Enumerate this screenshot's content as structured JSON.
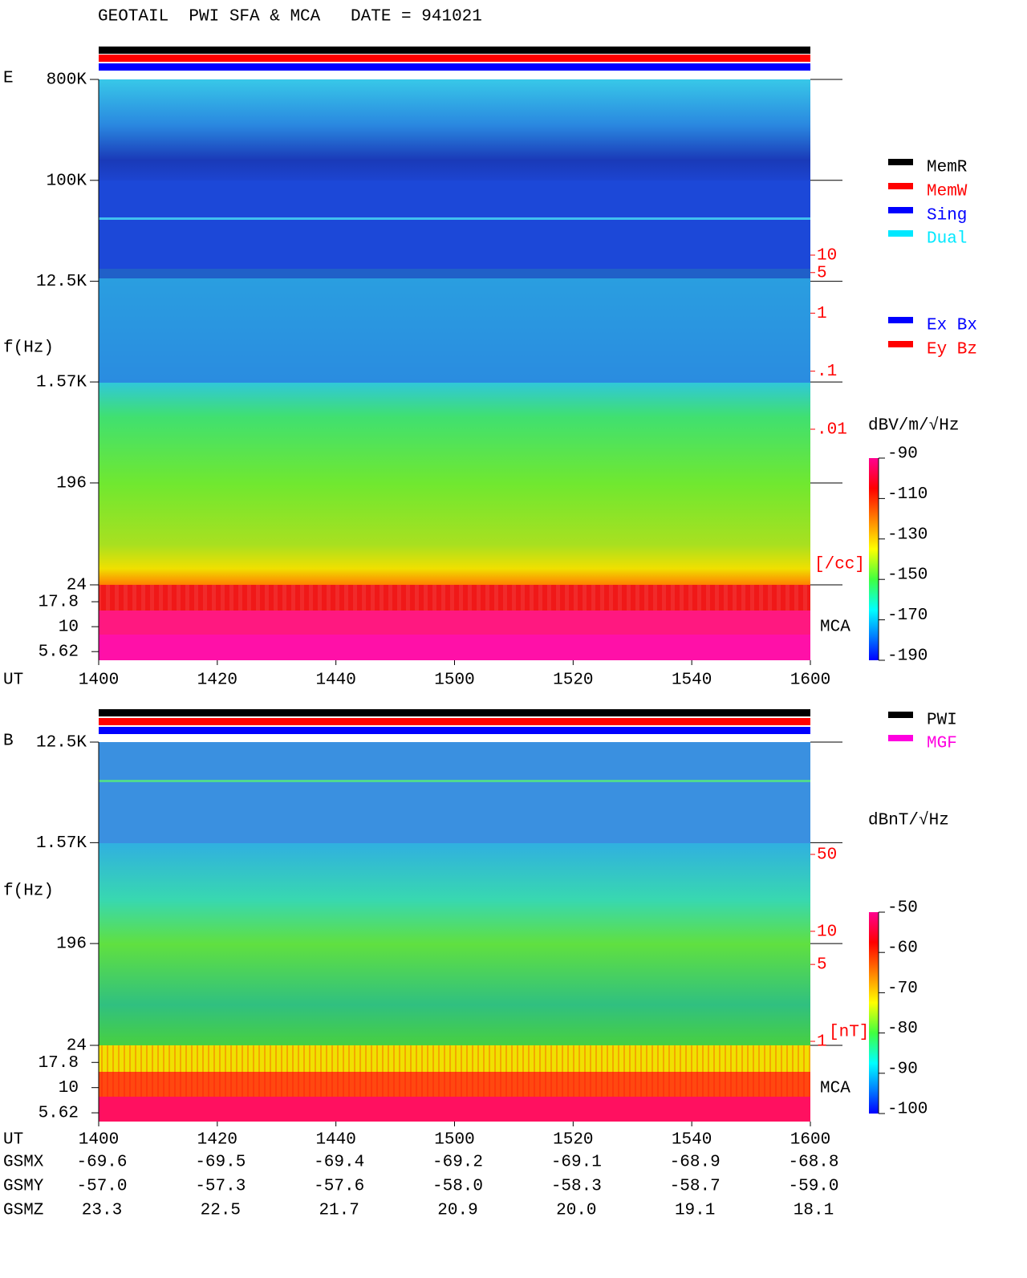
{
  "title": "GEOTAIL  PWI SFA & MCA   DATE = 941021",
  "chart_data": [
    {
      "type": "spectrogram",
      "panel_label": "E",
      "y_label": "f(Hz)",
      "x_label": "UT",
      "mca_label": "MCA",
      "xlim": [
        840,
        960
      ],
      "xticks": [
        {
          "value": 840,
          "label": "1400"
        },
        {
          "value": 860,
          "label": "1420"
        },
        {
          "value": 880,
          "label": "1440"
        },
        {
          "value": 900,
          "label": "1500"
        },
        {
          "value": 920,
          "label": "1520"
        },
        {
          "value": 940,
          "label": "1540"
        },
        {
          "value": 960,
          "label": "1600"
        }
      ],
      "log_y": true,
      "ylim": [
        24,
        800000
      ],
      "yticks": [
        {
          "value": 800000,
          "label": "800K"
        },
        {
          "value": 100000,
          "label": "100K"
        },
        {
          "value": 12500,
          "label": "12.5K"
        },
        {
          "value": 1570,
          "label": "1.57K"
        },
        196,
        24
      ],
      "mca_ylim": [
        4.6,
        26.3
      ],
      "mca_yticks": [
        17.8,
        10,
        5.62
      ],
      "y2_label": "[/cc]",
      "y2lim": [
        0.01,
        10
      ],
      "y2ticks": [
        10,
        5,
        1,
        {
          "value": 0.1,
          "label": ".1"
        },
        {
          "value": 0.01,
          "label": ".01"
        }
      ],
      "colorbar": {
        "label": "dBV/m/√Hz",
        "lim": [
          -190,
          -90
        ],
        "ticks": [
          -90,
          -110,
          -130,
          -150,
          -170,
          -190
        ]
      },
      "legend": [
        {
          "name": "MemR",
          "color": "#000000"
        },
        {
          "name": "MemW",
          "color": "#ff0000"
        },
        {
          "name": "Sing",
          "color": "#0000ff"
        },
        {
          "name": "Dual",
          "color": "#00e8ff"
        }
      ],
      "legend2": [
        {
          "name": "Ex Bx",
          "color": "#0000ff"
        },
        {
          "name": "Ey Bz",
          "color": "#ff0000"
        }
      ]
    },
    {
      "type": "spectrogram",
      "panel_label": "B",
      "y_label": "f(Hz)",
      "x_label": "UT",
      "mca_label": "MCA",
      "xlim": [
        840,
        960
      ],
      "xticks": [
        {
          "value": 840,
          "label": "1400"
        },
        {
          "value": 860,
          "label": "1420"
        },
        {
          "value": 880,
          "label": "1440"
        },
        {
          "value": 900,
          "label": "1500"
        },
        {
          "value": 920,
          "label": "1520"
        },
        {
          "value": 940,
          "label": "1540"
        },
        {
          "value": 960,
          "label": "1600"
        }
      ],
      "log_y": true,
      "ylim": [
        24,
        12500
      ],
      "yticks": [
        {
          "value": 12500,
          "label": "12.5K"
        },
        {
          "value": 1570,
          "label": "1.57K"
        },
        196,
        24
      ],
      "mca_ylim": [
        4.6,
        26.3
      ],
      "mca_yticks": [
        17.8,
        10,
        5.62
      ],
      "y2_label": "[nT]",
      "y2lim": [
        1,
        50
      ],
      "y2ticks": [
        50,
        10,
        5,
        1
      ],
      "colorbar": {
        "label": "dBnT/√Hz",
        "lim": [
          -100,
          -50
        ],
        "ticks": [
          -50,
          -60,
          -70,
          -80,
          -90,
          -100
        ]
      },
      "legend": [
        {
          "name": "PWI",
          "color": "#000000"
        },
        {
          "name": "MGF",
          "color": "#ff00e0"
        }
      ]
    }
  ],
  "orbit": {
    "rows": [
      {
        "label": "GSMX",
        "values": [
          "-69.6",
          "-69.5",
          "-69.4",
          "-69.2",
          "-69.1",
          "-68.9",
          "-68.8"
        ]
      },
      {
        "label": "GSMY",
        "values": [
          "-57.0",
          "-57.3",
          "-57.6",
          "-58.0",
          "-58.3",
          "-58.7",
          "-59.0"
        ]
      },
      {
        "label": "GSMZ",
        "values": [
          "23.3",
          "22.5",
          "21.7",
          "20.9",
          "20.0",
          "19.1",
          "18.1"
        ]
      }
    ]
  }
}
